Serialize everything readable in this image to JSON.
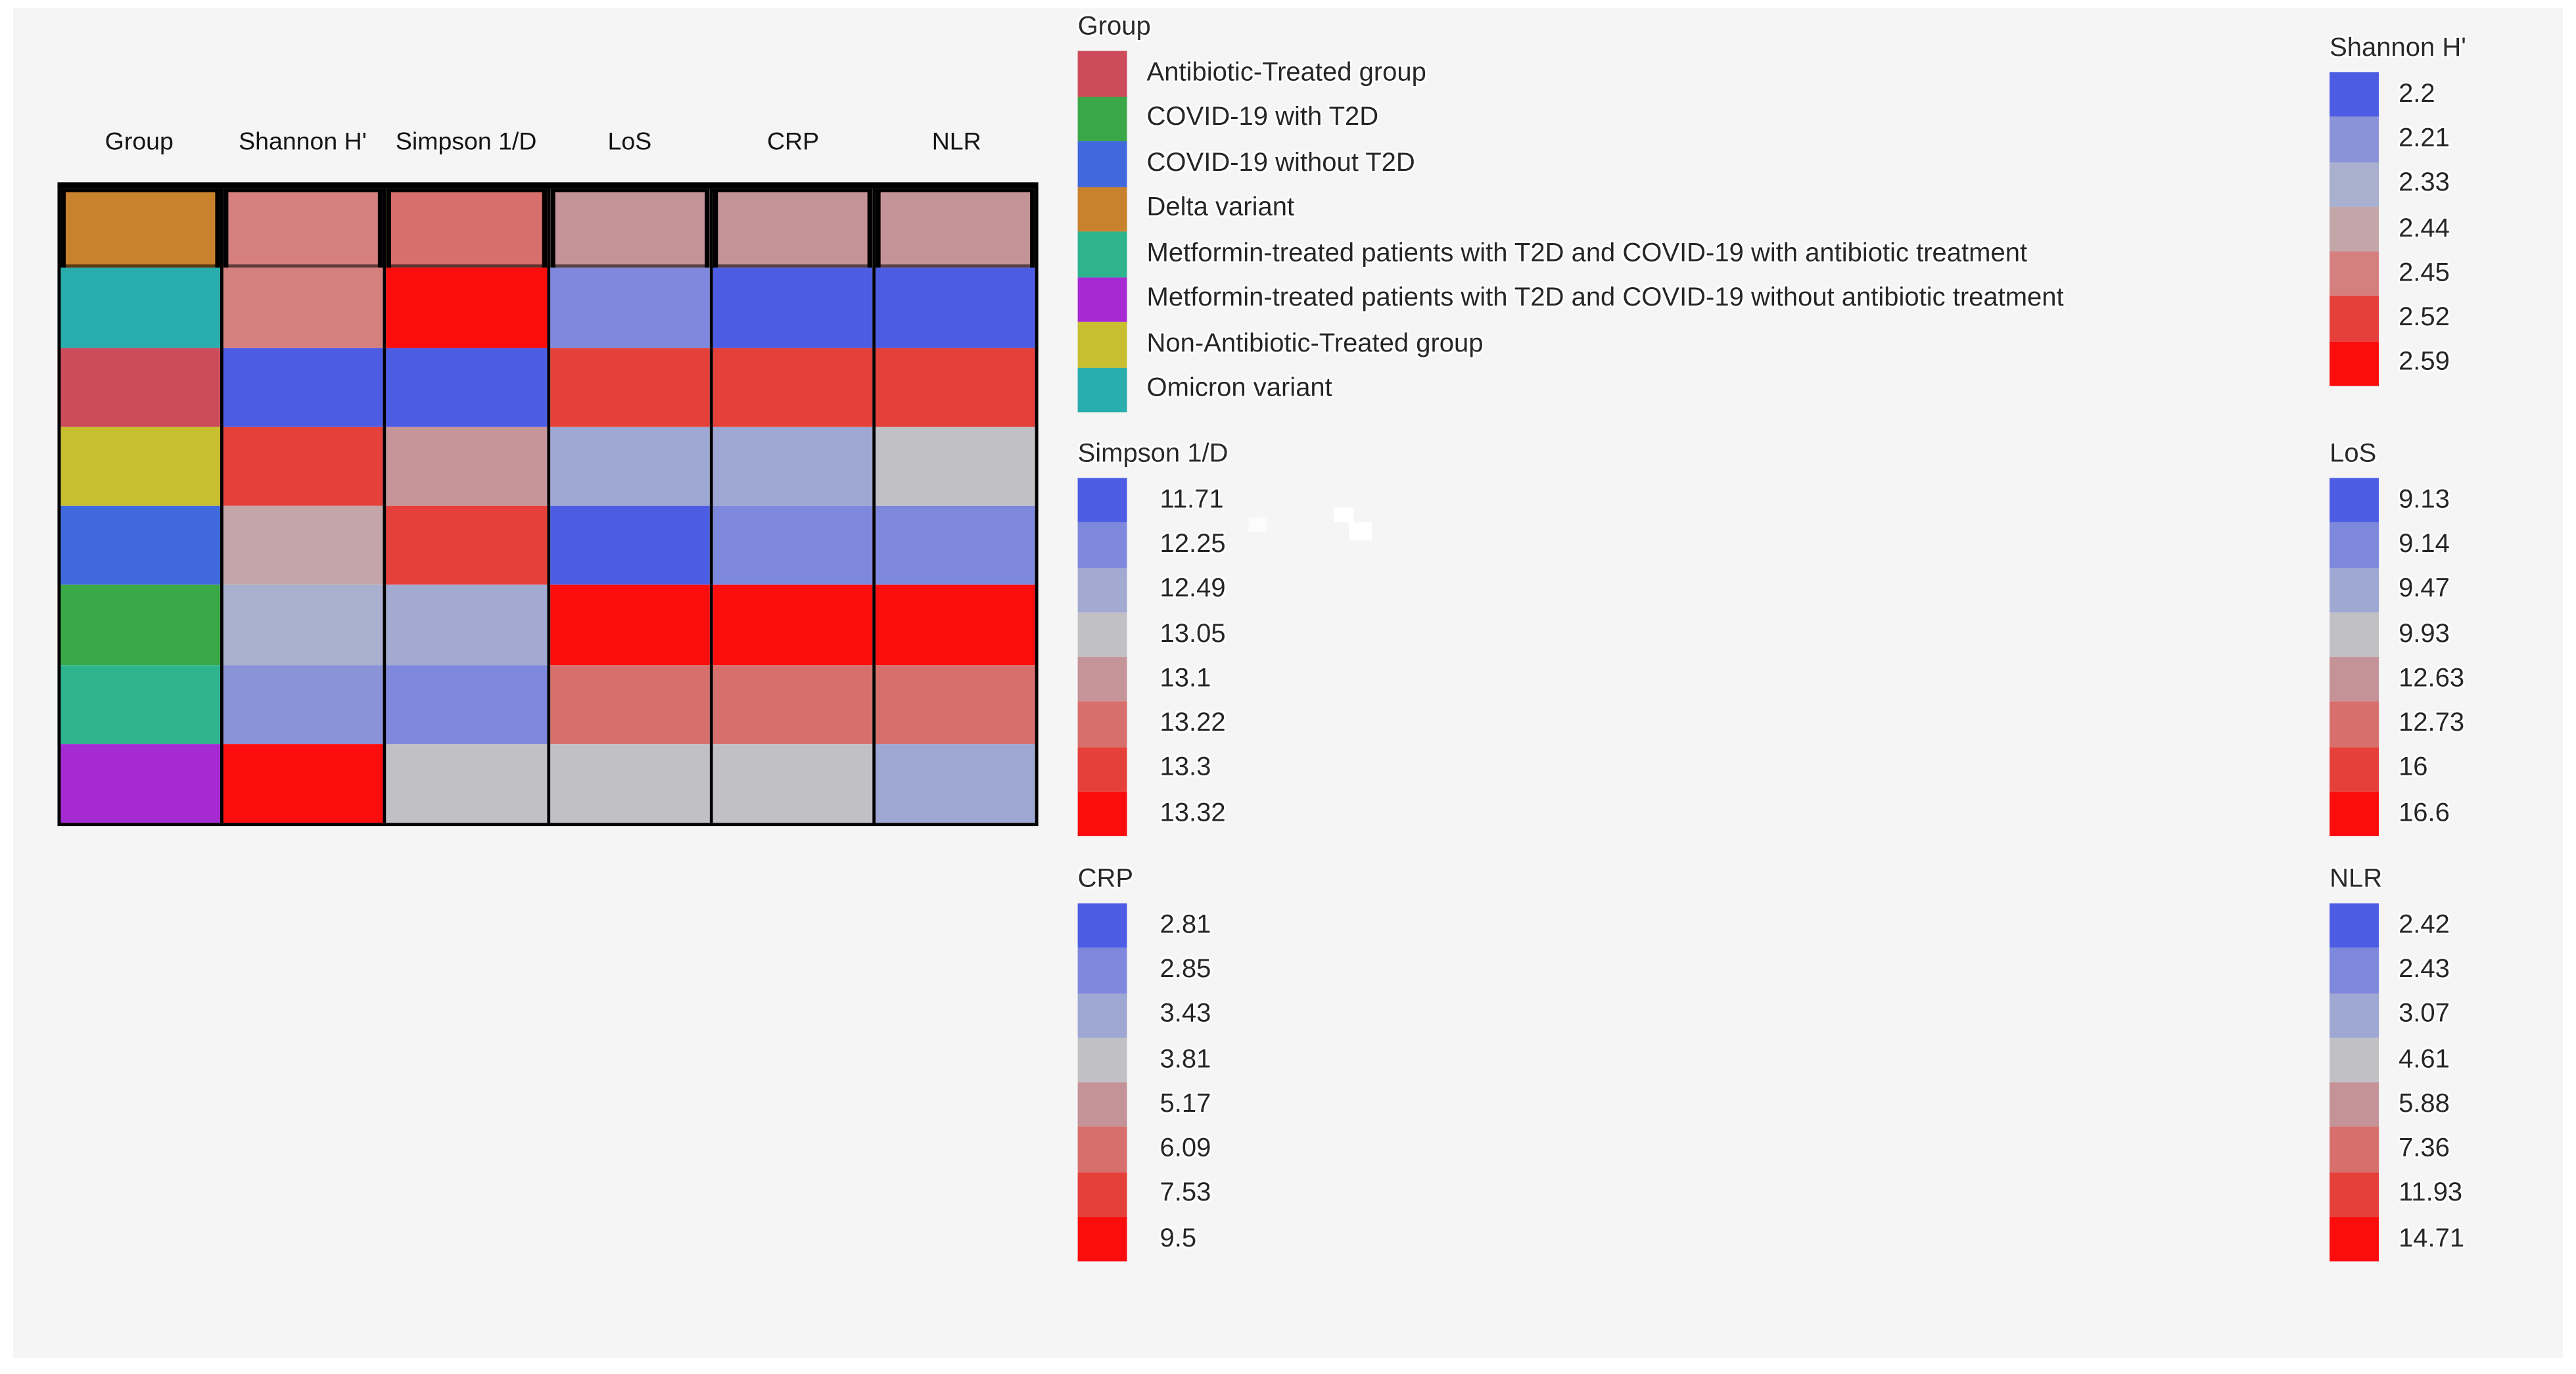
{
  "page": {
    "background": "#f5f5f6"
  },
  "heatmap": {
    "columns": [
      {
        "key": "group",
        "label": "Group"
      },
      {
        "key": "shannon",
        "label": "Shannon H'"
      },
      {
        "key": "simpson",
        "label": "Simpson 1/D"
      },
      {
        "key": "los",
        "label": "LoS"
      },
      {
        "key": "crp",
        "label": "CRP"
      },
      {
        "key": "nlr",
        "label": "NLR"
      }
    ],
    "row_groups": [
      "Delta variant",
      "Omicron variant",
      "Antibiotic-Treated group",
      "Non-Antibiotic-Treated group",
      "COVID-19 without T2D",
      "COVID-19 with T2D",
      "Metformin-treated patients with T2D and COVID-19 with antibiotic treatment",
      "Metformin-treated patients with T2D and COVID-19 without antibiotic treatment"
    ],
    "cell_colors": {
      "group": [
        "#c8812d",
        "#2aadad",
        "#cd4c5c",
        "#c9bd30",
        "#4169de",
        "#3aa847",
        "#2db48d",
        "#a52ad2"
      ],
      "shannon": [
        "#d5807f",
        "#d5807f",
        "#4c5de4",
        "#e5403a",
        "#c4a5a8",
        "#a9afce",
        "#8b93d8",
        "#fb0d0d"
      ],
      "simpson": [
        "#d76f6c",
        "#fb0d0d",
        "#4c5de4",
        "#c59599",
        "#e5403a",
        "#a2aad2",
        "#7e88dc",
        "#c1c1c5"
      ],
      "los": [
        "#c49398",
        "#7e88dc",
        "#e5403a",
        "#9fa7d3",
        "#4c5de4",
        "#fb0d0d",
        "#d76f6c",
        "#c1c1c5"
      ],
      "crp": [
        "#c49398",
        "#4c5de4",
        "#e5403a",
        "#9fa7d3",
        "#7e88dc",
        "#fb0d0d",
        "#d76f6c",
        "#c1c1c5"
      ],
      "nlr": [
        "#c49398",
        "#4c5de4",
        "#e5403a",
        "#c1c1c5",
        "#7e88dc",
        "#fb0d0d",
        "#d76f6c",
        "#9fa7d3"
      ]
    }
  },
  "legends": {
    "group": {
      "title": "Group",
      "items": [
        {
          "label": "Antibiotic-Treated group",
          "color": "#cd4c5c"
        },
        {
          "label": "COVID-19 with T2D",
          "color": "#3aa847"
        },
        {
          "label": "COVID-19 without T2D",
          "color": "#4169de"
        },
        {
          "label": "Delta variant",
          "color": "#c8812d"
        },
        {
          "label": "Metformin-treated patients with T2D and COVID-19 with antibiotic treatment",
          "color": "#2db48d"
        },
        {
          "label": "Metformin-treated patients with T2D and COVID-19 without antibiotic treatment",
          "color": "#a52ad2"
        },
        {
          "label": "Non-Antibiotic-Treated group",
          "color": "#c9bd30"
        },
        {
          "label": "Omicron variant",
          "color": "#2aadad"
        }
      ]
    },
    "shannon": {
      "title": "Shannon H'",
      "items": [
        {
          "label": "2.2",
          "color": "#4c5de4"
        },
        {
          "label": "2.21",
          "color": "#8b93d8"
        },
        {
          "label": "2.33",
          "color": "#a9afce"
        },
        {
          "label": "2.44",
          "color": "#c4a5a8"
        },
        {
          "label": "2.45",
          "color": "#d5807f"
        },
        {
          "label": "2.52",
          "color": "#e5403a"
        },
        {
          "label": "2.59",
          "color": "#fb0d0d"
        }
      ]
    },
    "simpson": {
      "title": "Simpson 1/D",
      "items": [
        {
          "label": "11.71",
          "color": "#4c5de4"
        },
        {
          "label": "12.25",
          "color": "#7e88dc"
        },
        {
          "label": "12.49",
          "color": "#a2aad2"
        },
        {
          "label": "13.05",
          "color": "#c1c1c5"
        },
        {
          "label": "13.1",
          "color": "#c59599"
        },
        {
          "label": "13.22",
          "color": "#d76f6c"
        },
        {
          "label": "13.3",
          "color": "#e5403a"
        },
        {
          "label": "13.32",
          "color": "#fb0d0d"
        }
      ]
    },
    "los": {
      "title": "LoS",
      "items": [
        {
          "label": "9.13",
          "color": "#4c5de4"
        },
        {
          "label": "9.14",
          "color": "#7e88dc"
        },
        {
          "label": "9.47",
          "color": "#9fa7d3"
        },
        {
          "label": "9.93",
          "color": "#c1c1c5"
        },
        {
          "label": "12.63",
          "color": "#c49398"
        },
        {
          "label": "12.73",
          "color": "#d76f6c"
        },
        {
          "label": "16",
          "color": "#e5403a"
        },
        {
          "label": "16.6",
          "color": "#fb0d0d"
        }
      ]
    },
    "crp": {
      "title": "CRP",
      "items": [
        {
          "label": "2.81",
          "color": "#4c5de4"
        },
        {
          "label": "2.85",
          "color": "#7e88dc"
        },
        {
          "label": "3.43",
          "color": "#9fa7d3"
        },
        {
          "label": "3.81",
          "color": "#c1c1c5"
        },
        {
          "label": "5.17",
          "color": "#c49398"
        },
        {
          "label": "6.09",
          "color": "#d76f6c"
        },
        {
          "label": "7.53",
          "color": "#e5403a"
        },
        {
          "label": "9.5",
          "color": "#fb0d0d"
        }
      ]
    },
    "nlr": {
      "title": "NLR",
      "items": [
        {
          "label": "2.42",
          "color": "#4c5de4"
        },
        {
          "label": "2.43",
          "color": "#7e88dc"
        },
        {
          "label": "3.07",
          "color": "#9fa7d3"
        },
        {
          "label": "4.61",
          "color": "#c1c1c5"
        },
        {
          "label": "5.88",
          "color": "#c49398"
        },
        {
          "label": "7.36",
          "color": "#d76f6c"
        },
        {
          "label": "11.93",
          "color": "#e5403a"
        },
        {
          "label": "14.71",
          "color": "#fb0d0d"
        }
      ]
    }
  },
  "chart_data": {
    "type": "heatmap",
    "title": "",
    "columns": [
      "Group",
      "Shannon H'",
      "Simpson 1/D",
      "LoS",
      "CRP",
      "NLR"
    ],
    "rows": [
      "Delta variant",
      "Omicron variant",
      "Antibiotic-Treated group",
      "Non-Antibiotic-Treated group",
      "COVID-19 without T2D",
      "COVID-19 with T2D",
      "Metformin-treated patients with T2D and COVID-19 with antibiotic treatment",
      "Metformin-treated patients with T2D and COVID-19 without antibiotic treatment"
    ],
    "values": {
      "Shannon H'": [
        2.45,
        2.45,
        2.2,
        2.52,
        2.44,
        2.33,
        2.21,
        2.59
      ],
      "Simpson 1/D": [
        13.22,
        13.32,
        11.71,
        13.1,
        13.3,
        12.49,
        12.25,
        13.05
      ],
      "LoS": [
        12.63,
        9.14,
        16,
        9.47,
        9.13,
        16.6,
        12.73,
        9.93
      ],
      "CRP": [
        5.17,
        2.81,
        7.53,
        3.43,
        2.85,
        9.5,
        6.09,
        3.81
      ],
      "NLR": [
        5.88,
        2.42,
        11.93,
        4.61,
        2.43,
        14.71,
        7.36,
        3.07
      ]
    },
    "colorscale": "discrete blue (low) through gray to red (high), per-column scale",
    "legend_position": "right of heatmap, two columns of legends",
    "grid": "black borders between columns; first row cells outlined in black"
  }
}
